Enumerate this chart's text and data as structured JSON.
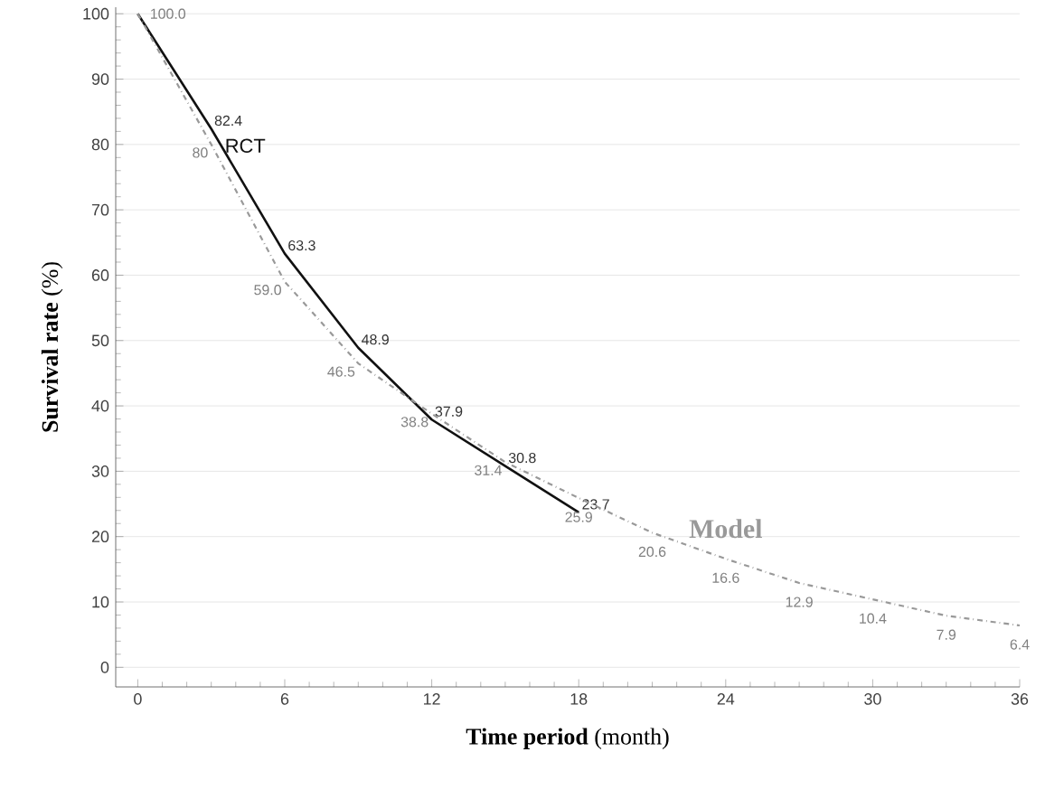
{
  "chart_data": {
    "type": "line",
    "xlabel": "**Time period** (month)",
    "ylabel": "**Survival rate** (%)",
    "x": [
      0,
      3,
      6,
      9,
      12,
      15,
      18,
      21,
      24,
      27,
      30,
      33,
      36
    ],
    "series": [
      {
        "name": "RCT",
        "color": "#111111",
        "line_style": "solid",
        "x": [
          0,
          3,
          6,
          9,
          12,
          15,
          18
        ],
        "values": [
          100,
          82.4,
          63.3,
          48.9,
          37.9,
          30.8,
          23.7
        ],
        "value_labels": [
          null,
          "82.4",
          "63.3",
          "48.9",
          "37.9",
          "30.8",
          "23.7"
        ]
      },
      {
        "name": "Model",
        "color": "#999999",
        "line_style": "dashdot",
        "values": [
          100.0,
          80,
          59.0,
          46.5,
          38.8,
          31.4,
          25.9,
          20.6,
          16.6,
          12.9,
          10.4,
          7.9,
          6.4
        ],
        "value_labels": [
          "100.0",
          "80",
          "59.0",
          "46.5",
          "38.8",
          "31.4",
          "25.9",
          "20.6",
          "16.6",
          "12.9",
          "10.4",
          "7.9",
          "6.4"
        ]
      }
    ],
    "xlim": [
      -0.9,
      36
    ],
    "ylim": [
      -3,
      101
    ],
    "xticks": [
      0,
      6,
      12,
      18,
      24,
      30,
      36
    ],
    "yticks": [
      0,
      10,
      20,
      30,
      40,
      50,
      60,
      70,
      80,
      90,
      100
    ],
    "grid": "y",
    "legend": false,
    "marker": "none"
  }
}
